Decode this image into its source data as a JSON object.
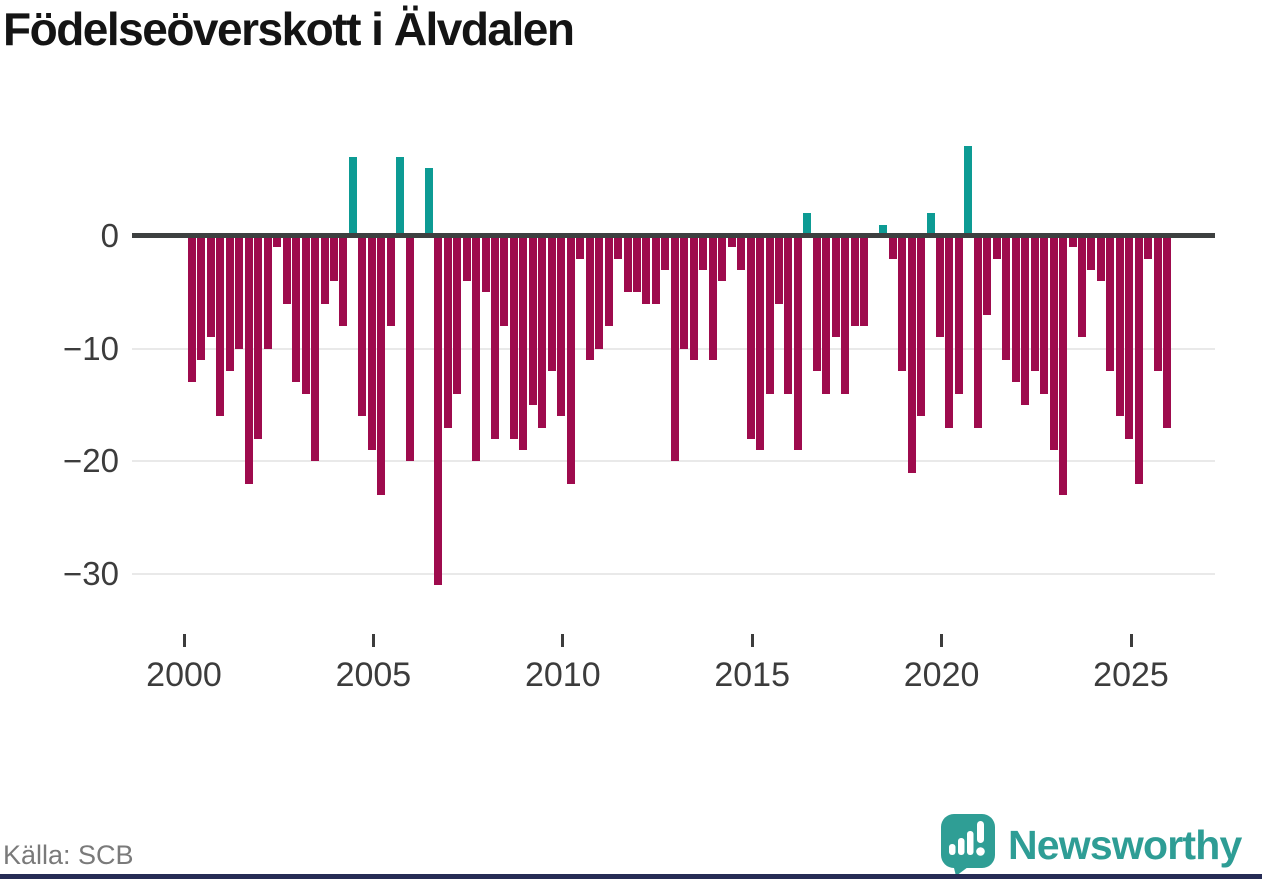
{
  "title": "Födelseöverskott i Älvdalen",
  "source": "Källa: SCB",
  "branding": {
    "name": "Newsworthy",
    "icon": "newsworthy-speech-bubble-bar-chart-icon"
  },
  "colors": {
    "negative": "#9e0b4d",
    "positive": "#0d9b94",
    "zero_line": "#3d4040",
    "grid": "#e9e9e9",
    "tick_label": "#3c3c3c",
    "title_text": "#141414",
    "source_text": "#7a7a7a",
    "logo": "#2e9d95",
    "footer_strip": "#262c55"
  },
  "chart_data": {
    "type": "bar",
    "title": "Födelseöverskott i Älvdalen",
    "x_start": "2000-Q1",
    "frequency": "quarterly",
    "values": [
      -13,
      -11,
      -9,
      -16,
      -12,
      -10,
      -22,
      -18,
      -10,
      -1,
      -6,
      -13,
      -14,
      -20,
      -6,
      -4,
      -8,
      7,
      -16,
      -19,
      -23,
      -8,
      7,
      -20,
      0,
      6,
      -31,
      -17,
      -14,
      -4,
      -20,
      -5,
      -18,
      -8,
      -18,
      -19,
      -15,
      -17,
      -12,
      -16,
      -22,
      -2,
      -11,
      -10,
      -8,
      -2,
      -5,
      -5,
      -6,
      -6,
      -3,
      -20,
      -10,
      -11,
      -3,
      -11,
      -4,
      -1,
      -3,
      -18,
      -19,
      -14,
      -6,
      -14,
      -19,
      2,
      -12,
      -14,
      -9,
      -14,
      -8,
      -8,
      0,
      1,
      -2,
      -12,
      -21,
      -16,
      2,
      -9,
      -17,
      -14,
      8,
      -17,
      -7,
      -2,
      -11,
      -13,
      -15,
      -12,
      -14,
      -19,
      -23,
      -1,
      -9,
      -3,
      -4,
      -12,
      -16,
      -18,
      -22,
      -2,
      -12,
      -17
    ],
    "x_tick_labels": [
      "2000",
      "2005",
      "2010",
      "2015",
      "2020",
      "2025"
    ],
    "x_tick_years": [
      2000,
      2005,
      2010,
      2015,
      2020,
      2025
    ],
    "y_ticks": [
      0,
      -10,
      -20,
      -30
    ],
    "y_tick_labels": [
      "0",
      "−10",
      "−20",
      "−30"
    ],
    "ylim": [
      -33,
      9
    ],
    "grid": true,
    "legend": false
  }
}
